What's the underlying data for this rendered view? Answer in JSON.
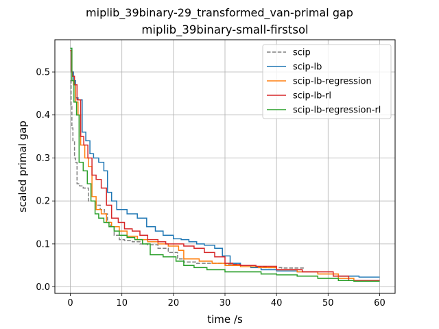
{
  "chart_data": {
    "type": "line",
    "suptitle": "miplib_39binary-29_transformed_van-primal gap",
    "title": "miplib_39binary-small-firstsol",
    "xlabel": "time /s",
    "ylabel": "scaled primal gap",
    "xlim": [
      -3,
      63
    ],
    "ylim": [
      -0.015,
      0.575
    ],
    "xticks": [
      0,
      10,
      20,
      30,
      40,
      50,
      60
    ],
    "yticks": [
      0.0,
      0.1,
      0.2,
      0.3,
      0.4,
      0.5
    ],
    "ytick_labels": [
      "0.0",
      "0.1",
      "0.2",
      "0.3",
      "0.4",
      "0.5"
    ],
    "grid": true,
    "legend_position": "top-right",
    "series": [
      {
        "name": "scip",
        "color": "#7f7f7f",
        "style": "dashed",
        "x": [
          0,
          0.15,
          0.3,
          0.5,
          0.8,
          1.0,
          1.3,
          1.8,
          2.5,
          3.5,
          4.2,
          5.0,
          5.8,
          6.6,
          7.2,
          7.8,
          8.5,
          9.5,
          10.5,
          12,
          13.5,
          15,
          17,
          19,
          20.8,
          22,
          24.5,
          27,
          30,
          33,
          36,
          38,
          41,
          45.5
        ],
        "y": [
          0.48,
          0.42,
          0.37,
          0.34,
          0.3,
          0.29,
          0.24,
          0.235,
          0.23,
          0.2,
          0.2,
          0.19,
          0.18,
          0.17,
          0.15,
          0.14,
          0.12,
          0.11,
          0.108,
          0.105,
          0.1,
          0.098,
          0.09,
          0.08,
          0.065,
          0.058,
          0.055,
          0.055,
          0.053,
          0.05,
          0.046,
          0.045,
          0.044,
          0.044
        ]
      },
      {
        "name": "scip-lb",
        "color": "#1f77b4",
        "style": "solid",
        "x": [
          0,
          0.3,
          0.6,
          1.0,
          1.5,
          2.3,
          3.0,
          3.8,
          4.5,
          5.5,
          6.5,
          7.2,
          8.0,
          9.0,
          11,
          13,
          14.8,
          16.5,
          18,
          20,
          21.5,
          23,
          24.5,
          26,
          28,
          29.5,
          31,
          33,
          35,
          37,
          40,
          44,
          48,
          52,
          56,
          60
        ],
        "y": [
          0.555,
          0.5,
          0.48,
          0.44,
          0.435,
          0.36,
          0.34,
          0.31,
          0.3,
          0.29,
          0.27,
          0.22,
          0.2,
          0.18,
          0.17,
          0.16,
          0.14,
          0.13,
          0.12,
          0.112,
          0.11,
          0.105,
          0.1,
          0.097,
          0.09,
          0.072,
          0.055,
          0.05,
          0.045,
          0.04,
          0.037,
          0.035,
          0.03,
          0.025,
          0.023,
          0.023
        ]
      },
      {
        "name": "scip-lb-regression",
        "color": "#ff7f0e",
        "style": "solid",
        "x": [
          0,
          0.3,
          0.6,
          1.0,
          1.5,
          2.0,
          2.8,
          3.5,
          4.2,
          5.0,
          6.0,
          7.0,
          8.0,
          9.5,
          11,
          13,
          15,
          17,
          19,
          21,
          22,
          25,
          27.5,
          30,
          33,
          36.5,
          40,
          44,
          48,
          52,
          55,
          58,
          60
        ],
        "y": [
          0.55,
          0.48,
          0.47,
          0.43,
          0.4,
          0.33,
          0.3,
          0.28,
          0.21,
          0.18,
          0.17,
          0.15,
          0.14,
          0.13,
          0.118,
          0.11,
          0.105,
          0.1,
          0.095,
          0.085,
          0.065,
          0.06,
          0.055,
          0.05,
          0.047,
          0.045,
          0.04,
          0.035,
          0.03,
          0.02,
          0.015,
          0.015,
          0.015
        ]
      },
      {
        "name": "scip-lb-rl",
        "color": "#d62728",
        "style": "solid",
        "x": [
          0,
          0.2,
          0.4,
          0.8,
          1.3,
          2.0,
          2.6,
          3.4,
          4.2,
          5.0,
          6.0,
          7.0,
          8.0,
          9.3,
          10.5,
          12,
          13.5,
          15,
          17,
          18.5,
          20,
          22,
          24,
          26,
          28,
          30,
          31.5,
          33,
          36,
          40,
          45,
          50,
          51,
          54,
          60
        ],
        "y": [
          0.55,
          0.5,
          0.49,
          0.47,
          0.435,
          0.35,
          0.33,
          0.3,
          0.26,
          0.25,
          0.23,
          0.19,
          0.16,
          0.15,
          0.135,
          0.13,
          0.12,
          0.11,
          0.105,
          0.1,
          0.1,
          0.095,
          0.09,
          0.08,
          0.07,
          0.055,
          0.052,
          0.05,
          0.048,
          0.04,
          0.035,
          0.035,
          0.025,
          0.015,
          0.015
        ]
      },
      {
        "name": "scip-lb-regression-rl",
        "color": "#2ca02c",
        "style": "solid",
        "x": [
          0,
          0.3,
          0.7,
          1.2,
          1.7,
          2.5,
          3.3,
          4.0,
          4.8,
          5.5,
          6.5,
          7.5,
          8.5,
          9.5,
          11,
          12.5,
          14,
          15.5,
          18,
          20.5,
          22,
          24,
          26.5,
          30,
          33,
          37,
          40,
          44,
          48,
          52,
          55,
          58,
          60
        ],
        "y": [
          0.555,
          0.48,
          0.43,
          0.4,
          0.29,
          0.27,
          0.24,
          0.2,
          0.17,
          0.16,
          0.15,
          0.14,
          0.13,
          0.12,
          0.115,
          0.11,
          0.1,
          0.075,
          0.07,
          0.06,
          0.05,
          0.045,
          0.04,
          0.035,
          0.035,
          0.03,
          0.028,
          0.025,
          0.02,
          0.015,
          0.013,
          0.013,
          0.013
        ]
      }
    ]
  }
}
